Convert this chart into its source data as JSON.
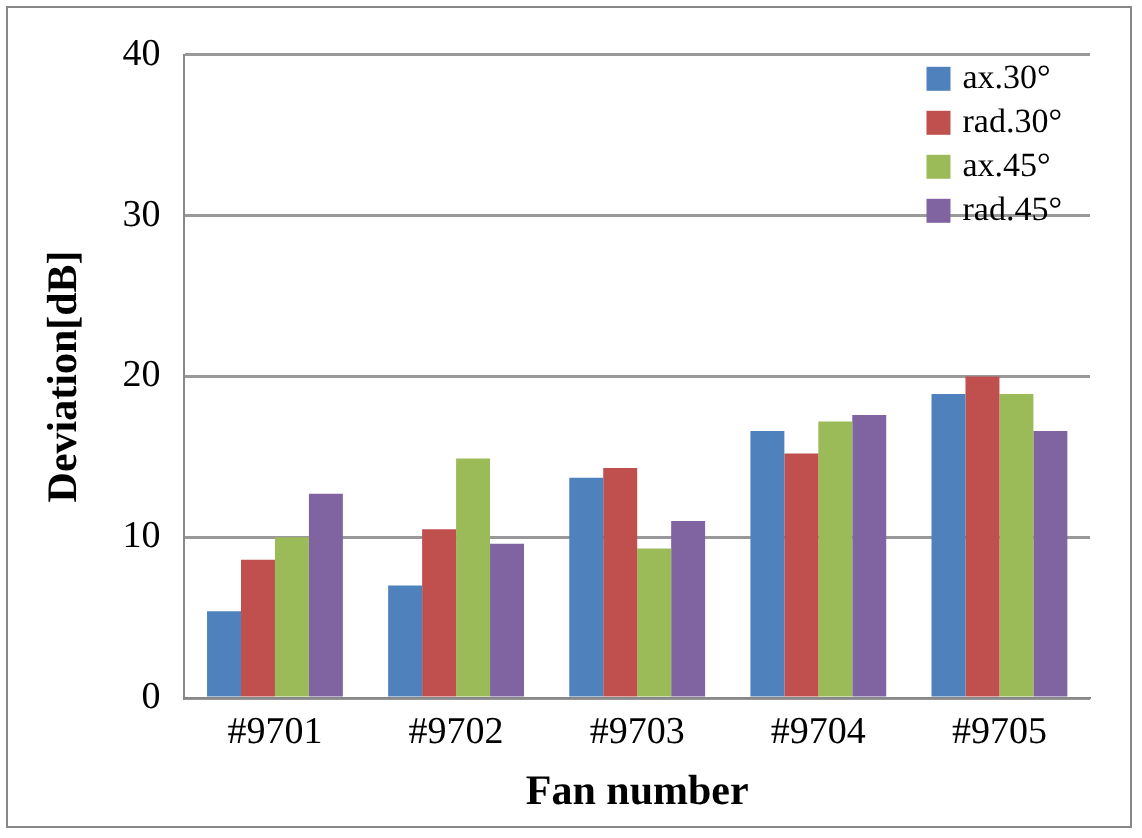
{
  "chart_data": {
    "type": "bar",
    "xlabel": "Fan number",
    "ylabel": "Deviation[dB]",
    "categories": [
      "#9701",
      "#9702",
      "#9703",
      "#9704",
      "#9705"
    ],
    "series": [
      {
        "name": "ax.30°",
        "color": "#4f81bd",
        "values": [
          5.4,
          7.0,
          13.7,
          16.6,
          18.9
        ]
      },
      {
        "name": "rad.30°",
        "color": "#c0504d",
        "values": [
          8.6,
          10.5,
          14.3,
          15.2,
          20.0
        ]
      },
      {
        "name": "ax.45°",
        "color": "#9bbb59",
        "values": [
          10.0,
          14.9,
          9.3,
          17.2,
          18.9
        ]
      },
      {
        "name": "rad.45°",
        "color": "#8064a2",
        "values": [
          12.7,
          9.6,
          11.0,
          17.6,
          16.6
        ]
      }
    ],
    "ylim": [
      0,
      40
    ],
    "yticks": [
      0,
      10,
      20,
      30,
      40
    ],
    "grid": "y",
    "legend": "top right"
  }
}
